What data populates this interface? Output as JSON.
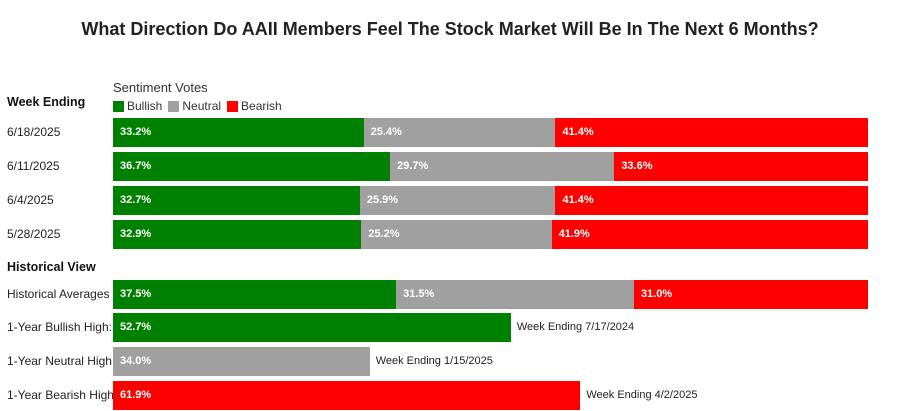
{
  "chart_data": {
    "type": "bar",
    "title": "What Direction Do AAII Members Feel The Stock Market Will Be In The Next 6 Months?",
    "legend_title": "Sentiment Votes",
    "series_names": [
      "Bullish",
      "Neutral",
      "Bearish"
    ],
    "colors": {
      "Bullish": "#008000",
      "Neutral": "#a0a0a0",
      "Bearish": "#ff0000"
    },
    "weekly_header": "Week Ending",
    "weekly": [
      {
        "label": "6/18/2025",
        "values": [
          33.2,
          25.4,
          41.4
        ],
        "labels": [
          "33.2%",
          "25.4%",
          "41.4%"
        ]
      },
      {
        "label": "6/11/2025",
        "values": [
          36.7,
          29.7,
          33.6
        ],
        "labels": [
          "36.7%",
          "29.7%",
          "33.6%"
        ]
      },
      {
        "label": "6/4/2025",
        "values": [
          32.7,
          25.9,
          41.4
        ],
        "labels": [
          "32.7%",
          "25.9%",
          "41.4%"
        ]
      },
      {
        "label": "5/28/2025",
        "values": [
          32.9,
          25.2,
          41.9
        ],
        "labels": [
          "32.9%",
          "25.2%",
          "41.9%"
        ]
      }
    ],
    "historical_header": "Historical View",
    "historical_average": {
      "label": "Historical Averages",
      "values": [
        37.5,
        31.5,
        31.0
      ],
      "labels": [
        "37.5%",
        "31.5%",
        "31.0%"
      ]
    },
    "highs": [
      {
        "label": "1-Year Bullish High:",
        "series": "Bullish",
        "value": 52.7,
        "value_label": "52.7%",
        "note": "Week Ending 7/17/2024"
      },
      {
        "label": "1-Year Neutral High",
        "series": "Neutral",
        "value": 34.0,
        "value_label": "34.0%",
        "note": "Week Ending 1/15/2025"
      },
      {
        "label": "1-Year Bearish High",
        "series": "Bearish",
        "value": 61.9,
        "value_label": "61.9%",
        "note": "Week Ending 4/2/2025"
      }
    ],
    "xlim": [
      0,
      100
    ]
  }
}
